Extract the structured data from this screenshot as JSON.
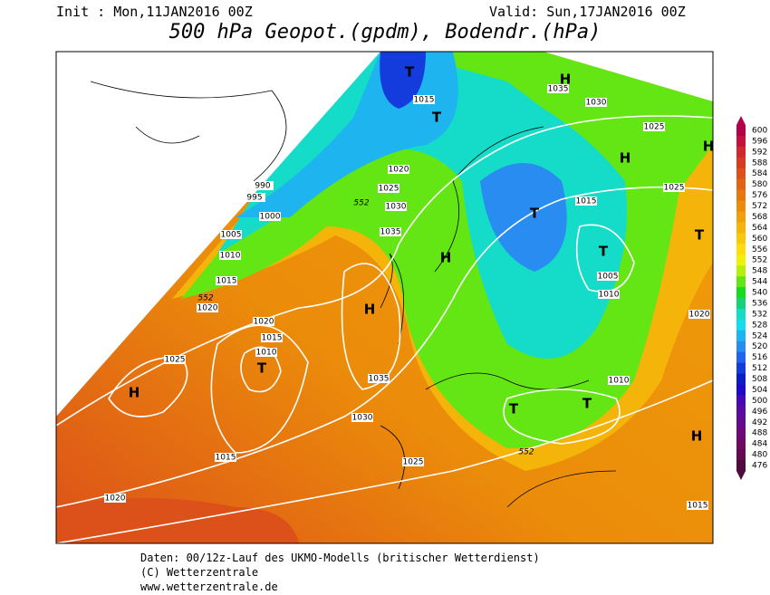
{
  "header": {
    "init": "Init : Mon,11JAN2016 00Z",
    "valid": "Valid: Sun,17JAN2016 00Z",
    "title": "500 hPa Geopot.(gpdm), Bodendr.(hPa)"
  },
  "colorbar": {
    "labels": [
      "600",
      "596",
      "592",
      "588",
      "584",
      "580",
      "576",
      "572",
      "568",
      "564",
      "560",
      "556",
      "552",
      "548",
      "544",
      "540",
      "536",
      "532",
      "528",
      "524",
      "520",
      "516",
      "512",
      "508",
      "504",
      "500",
      "496",
      "492",
      "488",
      "484",
      "480",
      "476"
    ],
    "colors": [
      "#b4004b",
      "#c8103c",
      "#d2282d",
      "#d73c23",
      "#dc5019",
      "#e16414",
      "#e6780f",
      "#eb8c0a",
      "#f0a00a",
      "#f5b40a",
      "#fac80a",
      "#ffdc0a",
      "#f0f00a",
      "#b4f00a",
      "#64e614",
      "#14dc1e",
      "#14d278",
      "#14dcc8",
      "#14dcf0",
      "#1eb4f0",
      "#288cf0",
      "#1e64f0",
      "#143cdc",
      "#0a1ec8",
      "#1e0ac8",
      "#460ab4",
      "#5a0aa0",
      "#640a8c",
      "#6e0a78",
      "#6e0a64",
      "#640a50",
      "#500a3c"
    ]
  },
  "map": {
    "pressure_labels": [
      "1015",
      "1035",
      "1030",
      "1025",
      "1020",
      "1025",
      "1030",
      "1035",
      "1025",
      "1015",
      "1005",
      "1010",
      "990",
      "995",
      "1000",
      "1005",
      "1010",
      "1015",
      "1020",
      "1020",
      "1015",
      "1010",
      "1025",
      "1035",
      "1030",
      "1015",
      "1025",
      "1020",
      "1020",
      "1010",
      "1015"
    ],
    "height_labels": [
      "552",
      "552",
      "552"
    ],
    "centers": [
      "T",
      "T",
      "H",
      "H",
      "H",
      "T",
      "T",
      "T",
      "H",
      "H",
      "T",
      "H",
      "T",
      "T",
      "H"
    ]
  },
  "footer": {
    "line1": "Daten: 00/12z-Lauf des UKMO-Modells (britischer Wetterdienst)",
    "line2": "(C) Wetterzentrale",
    "line3": "www.wetterzentrale.de"
  }
}
